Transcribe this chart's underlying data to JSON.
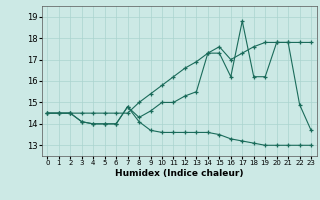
{
  "xlabel": "Humidex (Indice chaleur)",
  "x_values": [
    0,
    1,
    2,
    3,
    4,
    5,
    6,
    7,
    8,
    9,
    10,
    11,
    12,
    13,
    14,
    15,
    16,
    17,
    18,
    19,
    20,
    21,
    22,
    23
  ],
  "line1": [
    14.5,
    14.5,
    14.5,
    14.1,
    14.0,
    14.0,
    14.0,
    14.8,
    14.1,
    13.7,
    13.6,
    13.6,
    13.6,
    13.6,
    13.6,
    13.5,
    13.3,
    13.2,
    13.1,
    13.0,
    13.0,
    13.0,
    13.0,
    13.0
  ],
  "line2": [
    14.5,
    14.5,
    14.5,
    14.1,
    14.0,
    14.0,
    14.0,
    14.8,
    14.3,
    14.6,
    15.0,
    15.0,
    15.3,
    15.5,
    17.3,
    17.3,
    16.2,
    18.8,
    16.2,
    16.2,
    17.8,
    17.8,
    14.9,
    13.7
  ],
  "line3": [
    14.5,
    14.5,
    14.5,
    14.5,
    14.5,
    14.5,
    14.5,
    14.5,
    15.0,
    15.4,
    15.8,
    16.2,
    16.6,
    16.9,
    17.3,
    17.6,
    17.0,
    17.3,
    17.6,
    17.8,
    17.8,
    17.8,
    17.8,
    17.8
  ],
  "bg_color": "#cce9e5",
  "grid_color": "#aad4cf",
  "line_color": "#1a6b5a",
  "ylim": [
    12.5,
    19.5
  ],
  "xlim": [
    -0.5,
    23.5
  ],
  "yticks": [
    13,
    14,
    15,
    16,
    17,
    18,
    19
  ]
}
